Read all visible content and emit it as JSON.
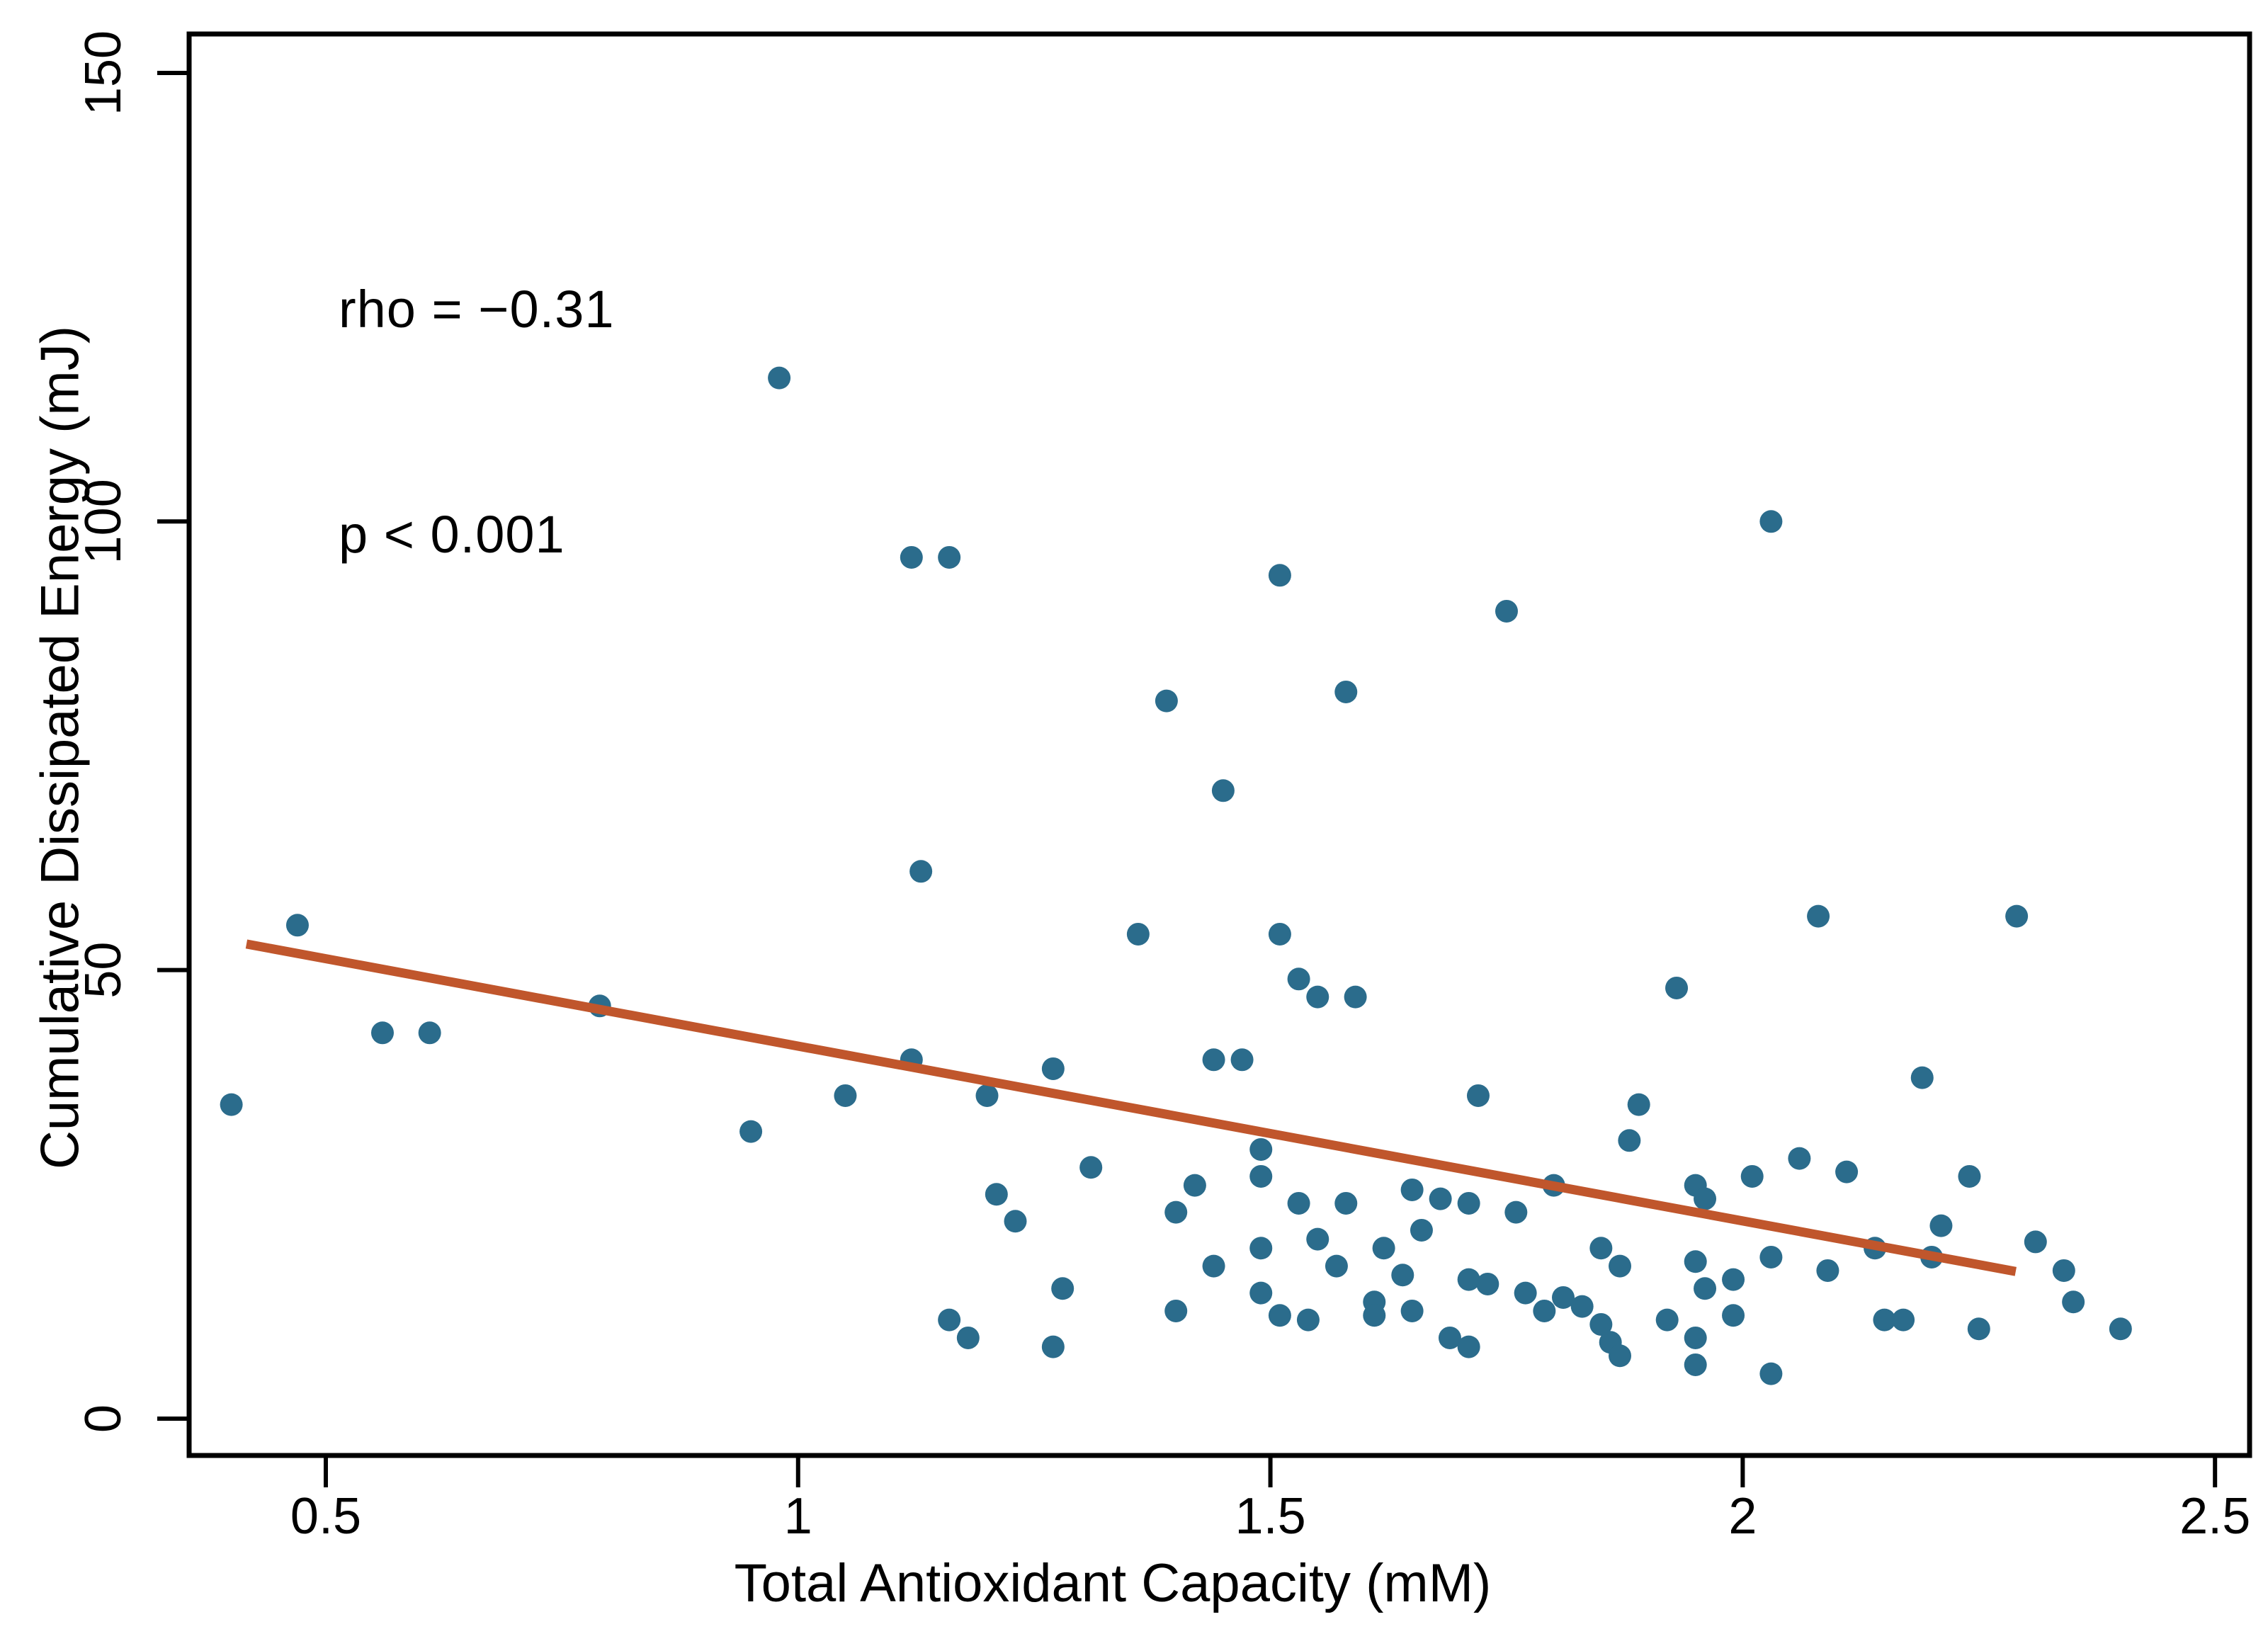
{
  "chart_data": {
    "type": "scatter",
    "title": "",
    "xlabel": "Total Antioxidant Capacity (mM)",
    "ylabel": "Cumulative Dissipated Energy (mJ)",
    "annotation_line1": "rho = −0.31",
    "annotation_line2": "p < 0.001",
    "xlim": [
      0.3553,
      2.5366
    ],
    "ylim": [
      -4.11,
      154.34
    ],
    "xticks": [
      0.5,
      1,
      1.5,
      2,
      2.5
    ],
    "xtick_labels": [
      "0.5",
      "1",
      "1.5",
      "2",
      "2.5"
    ],
    "yticks": [
      0,
      50,
      100,
      150
    ],
    "ytick_labels": [
      "0",
      "50",
      "100",
      "150"
    ],
    "grid": false,
    "legend": "none",
    "frame": "full-box",
    "trend_line": {
      "x1": 0.416,
      "y1": 52.9,
      "x2": 2.289,
      "y2": 16.4
    },
    "colors": {
      "point": "#2b6c8c",
      "trend": "#c0562c",
      "axis": "#000000",
      "background": "#ffffff"
    },
    "points": [
      [
        0.4,
        35
      ],
      [
        0.47,
        55
      ],
      [
        0.56,
        43
      ],
      [
        0.61,
        43
      ],
      [
        0.79,
        46
      ],
      [
        0.95,
        32
      ],
      [
        0.98,
        116
      ],
      [
        1.05,
        36
      ],
      [
        1.12,
        96
      ],
      [
        1.16,
        96
      ],
      [
        1.12,
        40
      ],
      [
        1.13,
        61
      ],
      [
        1.16,
        11
      ],
      [
        1.18,
        9
      ],
      [
        1.2,
        36
      ],
      [
        1.21,
        25
      ],
      [
        1.23,
        22
      ],
      [
        1.27,
        39
      ],
      [
        1.27,
        8
      ],
      [
        1.28,
        14.5
      ],
      [
        1.31,
        28
      ],
      [
        1.36,
        54
      ],
      [
        1.39,
        80
      ],
      [
        1.4,
        23
      ],
      [
        1.4,
        12
      ],
      [
        1.42,
        26
      ],
      [
        1.44,
        40
      ],
      [
        1.44,
        17
      ],
      [
        1.45,
        70
      ],
      [
        1.47,
        40
      ],
      [
        1.49,
        30
      ],
      [
        1.49,
        27
      ],
      [
        1.49,
        19
      ],
      [
        1.49,
        14
      ],
      [
        1.51,
        94
      ],
      [
        1.51,
        54
      ],
      [
        1.51,
        11.5
      ],
      [
        1.53,
        49
      ],
      [
        1.53,
        24
      ],
      [
        1.54,
        11
      ],
      [
        1.55,
        47
      ],
      [
        1.55,
        20
      ],
      [
        1.57,
        17
      ],
      [
        1.58,
        81
      ],
      [
        1.58,
        24
      ],
      [
        1.59,
        47
      ],
      [
        1.61,
        13
      ],
      [
        1.61,
        11.5
      ],
      [
        1.62,
        19
      ],
      [
        1.64,
        16
      ],
      [
        1.65,
        25.5
      ],
      [
        1.65,
        12
      ],
      [
        1.66,
        21
      ],
      [
        1.68,
        24.5
      ],
      [
        1.69,
        9
      ],
      [
        1.71,
        24
      ],
      [
        1.71,
        15.5
      ],
      [
        1.71,
        8
      ],
      [
        1.72,
        36
      ],
      [
        1.73,
        15
      ],
      [
        1.75,
        90
      ],
      [
        1.76,
        23
      ],
      [
        1.77,
        14
      ],
      [
        1.79,
        12
      ],
      [
        1.8,
        26
      ],
      [
        1.81,
        13.5
      ],
      [
        1.83,
        12.5
      ],
      [
        1.85,
        19
      ],
      [
        1.85,
        10.5
      ],
      [
        1.86,
        8.5
      ],
      [
        1.87,
        17
      ],
      [
        1.87,
        7
      ],
      [
        1.88,
        31
      ],
      [
        1.89,
        35
      ],
      [
        1.92,
        11
      ],
      [
        1.93,
        48
      ],
      [
        1.95,
        26
      ],
      [
        1.95,
        17.5
      ],
      [
        1.95,
        9
      ],
      [
        1.95,
        6
      ],
      [
        1.96,
        24.5
      ],
      [
        1.96,
        14.5
      ],
      [
        1.99,
        15.5
      ],
      [
        1.99,
        11.5
      ],
      [
        2.01,
        27
      ],
      [
        2.03,
        100
      ],
      [
        2.03,
        18
      ],
      [
        2.03,
        5
      ],
      [
        2.06,
        29
      ],
      [
        2.08,
        56
      ],
      [
        2.09,
        16.5
      ],
      [
        2.11,
        27.5
      ],
      [
        2.14,
        19
      ],
      [
        2.15,
        11
      ],
      [
        2.17,
        11
      ],
      [
        2.19,
        38
      ],
      [
        2.2,
        18
      ],
      [
        2.21,
        21.5
      ],
      [
        2.24,
        27
      ],
      [
        2.25,
        10
      ],
      [
        2.29,
        56
      ],
      [
        2.31,
        19.7
      ],
      [
        2.34,
        16.5
      ],
      [
        2.35,
        13
      ],
      [
        2.4,
        10
      ]
    ]
  }
}
